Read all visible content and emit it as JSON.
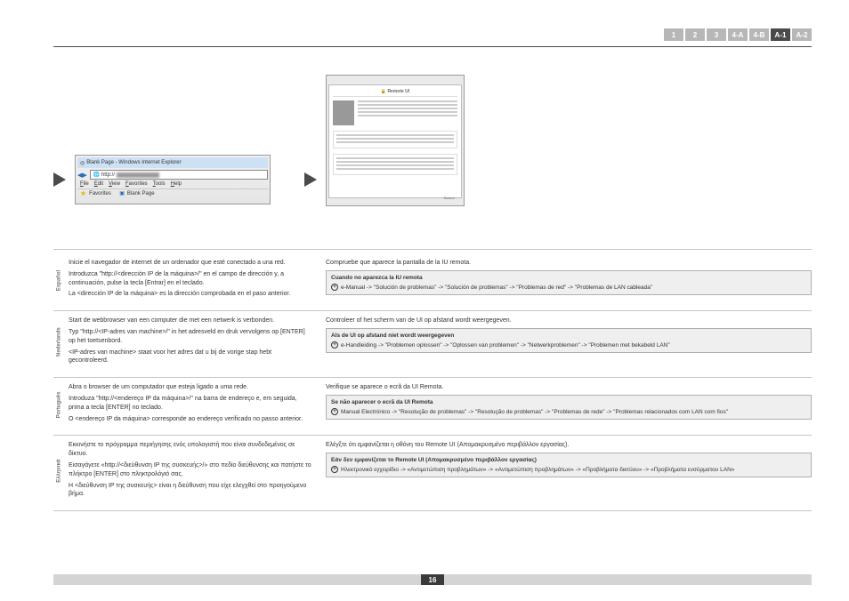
{
  "tabs": {
    "t1": "1",
    "t2": "2",
    "t3": "3",
    "t4a": "4-A",
    "t4b": "4-B",
    "ta1": "A-1",
    "ta2": "A-2"
  },
  "browser": {
    "title": "Blank Page - Windows Internet Explorer",
    "http": "http://",
    "menu": {
      "file": "File",
      "edit": "Edit",
      "view": "View",
      "fav": "Favorites",
      "tools": "Tools",
      "help": "Help"
    },
    "favorites": "Favorites",
    "blank": "Blank Page"
  },
  "remoteui": {
    "title": "Remote UI",
    "logo": "Canon"
  },
  "es": {
    "l1": "Inicie el navegador de internet de un ordenador que esté conectado a una red.",
    "l2": "Introduzca \"http://<dirección IP de la máquina>/\" en el campo de dirección y, a continuación, pulse la tecla [Entrar] en el teclado.",
    "l3": "La <dirección IP de la máquina> es la dirección comprobada en el paso anterior.",
    "r1": "Compruebe que aparece la pantalla de la IU remota.",
    "boxTitle": "Cuando no aparezca la IU remota",
    "boxRef": "e-Manual -> \"Solución de problemas\" -> \"Solución de problemas\" -> \"Problemas de red\" -> \"Problemas de LAN cableada\"",
    "lang": "Español"
  },
  "nl": {
    "l1": "Start de webbrowser van een computer die met een netwerk is verbonden.",
    "l2": "Typ \"http://<IP-adres van machine>/\" in het adresveld en druk vervolgens op [ENTER] op het toetsenbord.",
    "l3": "<IP-adres van machine> staat voor het adres dat u bij de vorige stap hebt gecontroleerd.",
    "r1": "Controleer of het scherm van de UI op afstand wordt weergegeven.",
    "boxTitle": "Als de UI op afstand niet wordt weergegeven",
    "boxRef": "e-Handleiding -> \"Problemen oplossen\" -> \"Oplossen van problemen\" -> \"Netwerkproblemen\" -> \"Problemen met bekabeld LAN\"",
    "lang": "Nederlands"
  },
  "pt": {
    "l1": "Abra o browser de um computador que esteja ligado a uma rede.",
    "l2": "Introduza \"http://<endereço IP da máquina>/\" na barra de endereço e, em seguida, prima a tecla [ENTER] no teclado.",
    "l3": "O <endereço IP da máquina> corresponde ao endereço verificado no passo anterior.",
    "r1": "Verifique se aparece o ecrã da UI Remota.",
    "boxTitle": "Se não aparecer o ecrã da UI Remota",
    "boxRef": "Manual Electrónico -> \"Resolução de problemas\" -> \"Resolução de problemas\" -> \"Problemas de rede\" -> \"Problemas relacionados com LAN com fios\"",
    "lang": "Português"
  },
  "el": {
    "l1": "Εκκινήστε το πρόγραμμα περιήγησης ενός υπολογιστή που είναι συνδεδεμένος σε δίκτυο.",
    "l2": "Εισαγάγετε «http://<διεύθυνση IP της συσκευής>/» στο πεδίο διεύθυνσης και πατήστε το πλήκτρο [ENTER] στο πληκτρολόγιό σας.",
    "l3": "Η <διεύθυνση IP της συσκευής> είναι η διεύθυνση που είχε ελεγχθεί στο προηγούμενο βήμα.",
    "r1": "Ελέγξτε ότι εμφανίζεται η οθόνη του Remote UI (Απομακρυσμένο περιβάλλον εργασίας).",
    "boxTitle": "Εάν δεν εμφανίζεται το Remote UI (Απομακρυσμένο περιβάλλον εργασίας)",
    "boxRef": "Ηλεκτρονικό εγχειρίδιο -> «Αντιμετώπιση προβλημάτων» -> «Αντιμετώπιση προβλημάτων» -> «Προβλήματα δικτύου» -> «Προβλήματα ενσύρματου LAN»",
    "lang": "Ελληνικά"
  },
  "pageNum": "16"
}
